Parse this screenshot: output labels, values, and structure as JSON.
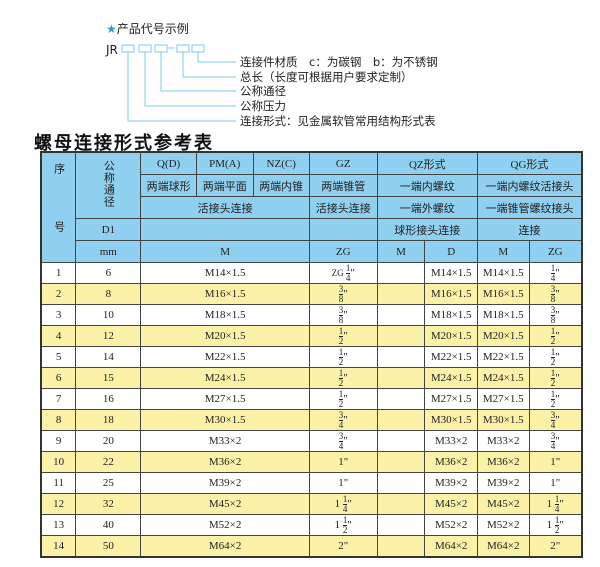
{
  "example": {
    "star_icon": "star-icon",
    "title": "产品代号示例",
    "code_prefix": "JR",
    "labels": [
      "连接件材质　c：为碳钢　b：为不锈钢",
      "总长（长度可根据用户要求定制）",
      "公称通径",
      "公称压力",
      "连接形式：见金属软管常用结构形式表"
    ],
    "accent_color": "#7fc8e8"
  },
  "table_title": "螺母连接形式参考表",
  "header": {
    "seq": "序　号",
    "nominal": "公称通径",
    "d1": "D1",
    "mm": "mm",
    "types": [
      "Q(D)",
      "PM(A)",
      "NZ(C)",
      "GZ",
      "QZ形式",
      "QG形式"
    ],
    "shapes": [
      "两端球形",
      "两端平面",
      "两端内锥",
      "两端锥管",
      "一端内螺纹",
      "一端内螺纹活接头"
    ],
    "conn_row": [
      "活接头连接",
      "活接头连接",
      "一端外螺纹",
      "一端锥管螺纹接头"
    ],
    "conn_row2": [
      "",
      "",
      "球形接头连接",
      "连接"
    ],
    "units": [
      "M",
      "ZG",
      "M",
      "D",
      "M",
      "ZG"
    ],
    "color": "#8fd0f0"
  },
  "rows": [
    {
      "no": "1",
      "dn": "6",
      "m": "M14×1.5",
      "zg": {
        "pre": "ZG",
        "w": "",
        "n": "1",
        "d": "4"
      },
      "qz_m": "",
      "qz_d": "M14×1.5",
      "qg_m": "M14×1.5",
      "qg_zg": {
        "w": "",
        "n": "1",
        "d": "4"
      }
    },
    {
      "no": "2",
      "dn": "8",
      "m": "M16×1.5",
      "zg": {
        "w": "",
        "n": "3",
        "d": "8"
      },
      "qz_m": "",
      "qz_d": "M16×1.5",
      "qg_m": "M16×1.5",
      "qg_zg": {
        "w": "",
        "n": "3",
        "d": "8"
      }
    },
    {
      "no": "3",
      "dn": "10",
      "m": "M18×1.5",
      "zg": {
        "w": "",
        "n": "3",
        "d": "8"
      },
      "qz_m": "",
      "qz_d": "M18×1.5",
      "qg_m": "M18×1.5",
      "qg_zg": {
        "w": "",
        "n": "3",
        "d": "8"
      }
    },
    {
      "no": "4",
      "dn": "12",
      "m": "M20×1.5",
      "zg": {
        "w": "",
        "n": "1",
        "d": "2"
      },
      "qz_m": "",
      "qz_d": "M20×1.5",
      "qg_m": "M20×1.5",
      "qg_zg": {
        "w": "",
        "n": "1",
        "d": "2"
      }
    },
    {
      "no": "5",
      "dn": "14",
      "m": "M22×1.5",
      "zg": {
        "w": "",
        "n": "1",
        "d": "2"
      },
      "qz_m": "",
      "qz_d": "M22×1.5",
      "qg_m": "M22×1.5",
      "qg_zg": {
        "w": "",
        "n": "1",
        "d": "2"
      }
    },
    {
      "no": "6",
      "dn": "15",
      "m": "M24×1.5",
      "zg": {
        "w": "",
        "n": "1",
        "d": "2"
      },
      "qz_m": "",
      "qz_d": "M24×1.5",
      "qg_m": "M24×1.5",
      "qg_zg": {
        "w": "",
        "n": "1",
        "d": "2"
      }
    },
    {
      "no": "7",
      "dn": "16",
      "m": "M27×1.5",
      "zg": {
        "w": "",
        "n": "1",
        "d": "2"
      },
      "qz_m": "",
      "qz_d": "M27×1.5",
      "qg_m": "M27×1.5",
      "qg_zg": {
        "w": "",
        "n": "1",
        "d": "2"
      }
    },
    {
      "no": "8",
      "dn": "18",
      "m": "M30×1.5",
      "zg": {
        "w": "",
        "n": "3",
        "d": "4"
      },
      "qz_m": "",
      "qz_d": "M30×1.5",
      "qg_m": "M30×1.5",
      "qg_zg": {
        "w": "",
        "n": "3",
        "d": "4"
      }
    },
    {
      "no": "9",
      "dn": "20",
      "m": "M33×2",
      "zg": {
        "w": "",
        "n": "3",
        "d": "4"
      },
      "qz_m": "",
      "qz_d": "M33×2",
      "qg_m": "M33×2",
      "qg_zg": {
        "w": "",
        "n": "3",
        "d": "4"
      }
    },
    {
      "no": "10",
      "dn": "22",
      "m": "M36×2",
      "zg": {
        "w": "1"
      },
      "qz_m": "",
      "qz_d": "M36×2",
      "qg_m": "M36×2",
      "qg_zg": {
        "w": "1"
      }
    },
    {
      "no": "11",
      "dn": "25",
      "m": "M39×2",
      "zg": {
        "w": "1"
      },
      "qz_m": "",
      "qz_d": "M39×2",
      "qg_m": "M39×2",
      "qg_zg": {
        "w": "1"
      }
    },
    {
      "no": "12",
      "dn": "32",
      "m": "M45×2",
      "zg": {
        "w": "1",
        "n": "1",
        "d": "4"
      },
      "qz_m": "",
      "qz_d": "M45×2",
      "qg_m": "M45×2",
      "qg_zg": {
        "w": "1",
        "n": "1",
        "d": "4"
      }
    },
    {
      "no": "13",
      "dn": "40",
      "m": "M52×2",
      "zg": {
        "w": "1",
        "n": "1",
        "d": "2"
      },
      "qz_m": "",
      "qz_d": "M52×2",
      "qg_m": "M52×2",
      "qg_zg": {
        "w": "1",
        "n": "1",
        "d": "2"
      }
    },
    {
      "no": "14",
      "dn": "50",
      "m": "M64×2",
      "zg": {
        "w": "2"
      },
      "qz_m": "",
      "qz_d": "M64×2",
      "qg_m": "M64×2",
      "qg_zg": {
        "w": "2"
      }
    }
  ],
  "row_alt_color": "#fbf2a8"
}
